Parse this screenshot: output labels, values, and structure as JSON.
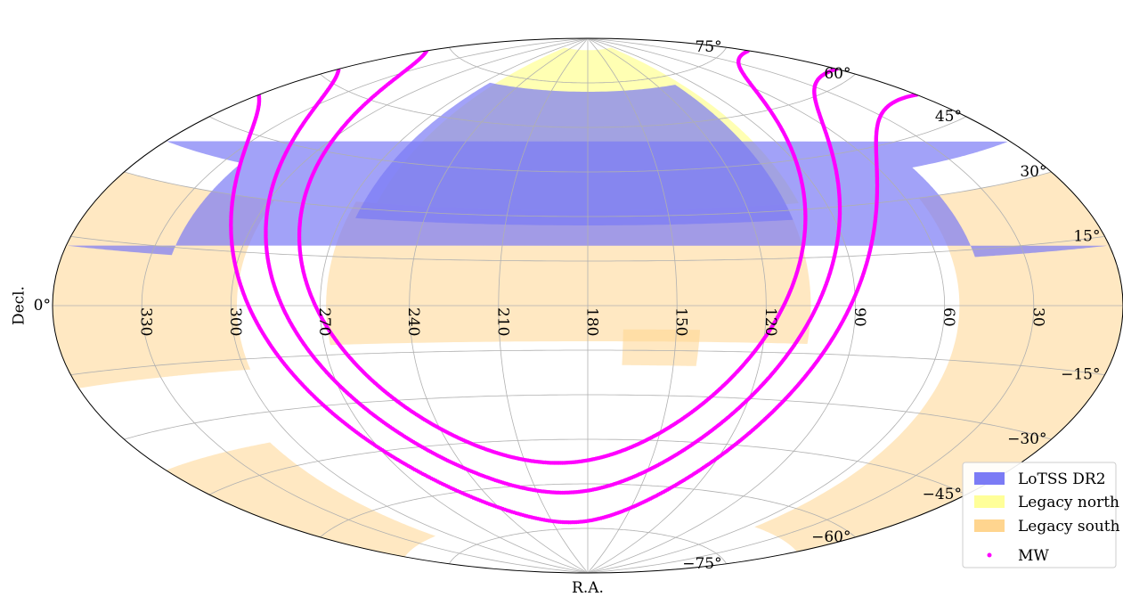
{
  "chart_data": {
    "type": "scatter",
    "projection": "Aitoff",
    "title": "",
    "xlabel": "R.A.",
    "ylabel": "Decl.",
    "xlim": [
      0,
      360
    ],
    "ylim": [
      -90,
      90
    ],
    "grid": true,
    "ra_tick_labels": [
      "330",
      "300",
      "270",
      "240",
      "210",
      "180",
      "150",
      "120",
      "90",
      "60",
      "30"
    ],
    "dec_tick_labels": [
      "75°",
      "60°",
      "45°",
      "30°",
      "15°",
      "0°",
      "−15°",
      "−30°",
      "−45°",
      "−60°",
      "−75°"
    ],
    "legend": {
      "placement": "lower-right",
      "entries": [
        {
          "label": "LoTSS DR2",
          "color": "#7b7bf5"
        },
        {
          "label": "Legacy north",
          "color": "#ffff99"
        },
        {
          "label": "Legacy south",
          "color": "#ffd58f"
        },
        {
          "label": "MW",
          "color": "#ff00ff"
        }
      ]
    },
    "series": [
      {
        "name": "LoTSS DR2",
        "color": "#7b7bf5",
        "regions": [
          {
            "ra": [
              105,
              265
            ],
            "dec": [
              27,
              72
            ]
          },
          {
            "ra": [
              -37,
              47
            ],
            "dec": [
              13,
              38
            ]
          }
        ]
      },
      {
        "name": "Legacy north",
        "color": "#ffff99",
        "regions": [
          {
            "ra": [
              100,
              260
            ],
            "dec": [
              32,
              86
            ]
          }
        ]
      },
      {
        "name": "Legacy south",
        "color": "#ffd58f",
        "regions": [
          {
            "ra": [
              105,
              268
            ],
            "dec": [
              -12,
              32
            ]
          },
          {
            "ra": [
              298,
              360
            ],
            "dec": [
              -18,
              30
            ]
          },
          {
            "ra": [
              0,
              55
            ],
            "dec": [
              -67,
              30
            ]
          },
          {
            "ra": [
              310,
              360
            ],
            "dec": [
              -70,
              -38
            ]
          },
          {
            "ra": [
              142,
              168
            ],
            "dec": [
              -20,
              -8
            ]
          }
        ]
      },
      {
        "name": "MW",
        "color": "#ff00ff",
        "galactic_latitudes": [
          -10,
          0,
          10
        ]
      }
    ]
  },
  "colors": {
    "lotss": "#7b7bf5",
    "legacy_north": "#ffff99",
    "legacy_south": "#ffd58f",
    "mw": "#ff00ff",
    "grid": "#b0b0b0"
  }
}
